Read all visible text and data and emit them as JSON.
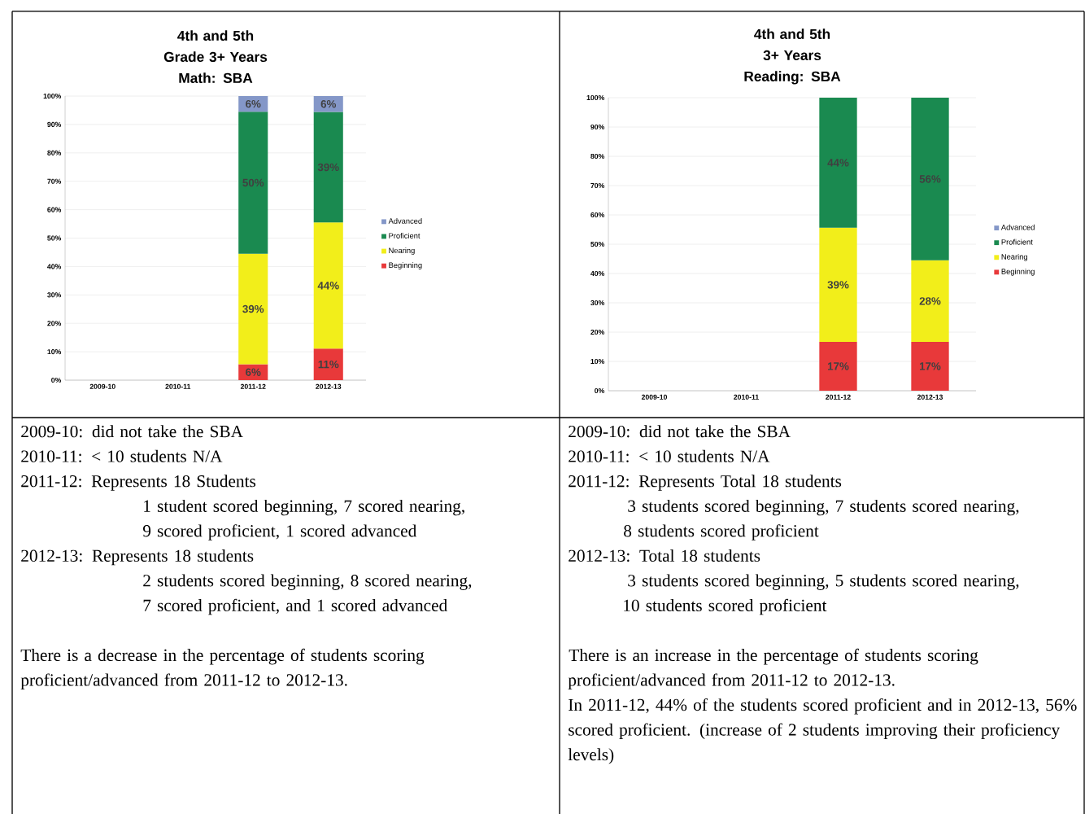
{
  "chart_data": [
    {
      "type": "bar",
      "stacked": true,
      "title": "4th and 5th Grade 3+ Years",
      "subtitle": "Math: SBA",
      "categories": [
        "2009-10",
        "2010-11",
        "2011-12",
        "2012-13"
      ],
      "series": [
        {
          "name": "Beginning",
          "color": "#e8393a",
          "values": [
            null,
            null,
            5.6,
            11.1
          ],
          "value_labels": [
            null,
            null,
            "6%",
            "11%"
          ]
        },
        {
          "name": "Nearing",
          "color": "#f2ee1a",
          "values": [
            null,
            null,
            38.9,
            44.4
          ],
          "value_labels": [
            null,
            null,
            "39%",
            "44%"
          ]
        },
        {
          "name": "Proficient",
          "color": "#1a8a50",
          "values": [
            null,
            null,
            50,
            38.9
          ],
          "value_labels": [
            null,
            null,
            "50%",
            "39%"
          ]
        },
        {
          "name": "Advanced",
          "color": "#8497c8",
          "values": [
            null,
            null,
            5.5,
            5.6
          ],
          "value_labels": [
            null,
            null,
            "6%",
            "6%"
          ]
        }
      ],
      "ylim": [
        0,
        100
      ],
      "yticks": [
        {
          "value": 0,
          "label": "0%"
        },
        {
          "value": 10,
          "label": "10%"
        },
        {
          "value": 20,
          "label": "20%"
        },
        {
          "value": 30,
          "label": "30%"
        },
        {
          "value": 40,
          "label": "40%"
        },
        {
          "value": 50,
          "label": "50%"
        },
        {
          "value": 60,
          "label": "60%"
        },
        {
          "value": 70,
          "label": "70%"
        },
        {
          "value": 80,
          "label": "80%"
        },
        {
          "value": 90,
          "label": "90%"
        },
        {
          "value": 100,
          "label": "100%"
        }
      ],
      "grid": "y",
      "legend": "right",
      "annotations": [
        "2009-10:  did not take the SBA",
        "2010-11:  < 10 students N/A",
        "2011-12:  Represents  18 Students",
        "1 student scored beginning, 7 scored nearing,",
        "9 scored proficient, 1 scored advanced",
        "2012-13:  Represents 18 students",
        "2 students scored beginning, 8 scored nearing,",
        "7 scored proficient, and 1 scored advanced",
        "There is a decrease in the percentage of students scoring proficient/advanced from 2011-12 to 2012-13."
      ]
    },
    {
      "type": "bar",
      "stacked": true,
      "title": "4th and 5th 3+ Years",
      "subtitle": "Reading: SBA",
      "categories": [
        "2009-10",
        "2010-11",
        "2011-12",
        "2012-13"
      ],
      "series": [
        {
          "name": "Beginning",
          "color": "#e8393a",
          "values": [
            null,
            null,
            16.7,
            16.7
          ],
          "value_labels": [
            null,
            null,
            "17%",
            "17%"
          ]
        },
        {
          "name": "Nearing",
          "color": "#f2ee1a",
          "values": [
            null,
            null,
            38.9,
            27.8
          ],
          "value_labels": [
            null,
            null,
            "39%",
            "28%"
          ]
        },
        {
          "name": "Proficient",
          "color": "#1a8a50",
          "values": [
            null,
            null,
            44.4,
            55.5
          ],
          "value_labels": [
            null,
            null,
            "44%",
            "56%"
          ]
        },
        {
          "name": "Advanced",
          "color": "#8497c8",
          "values": [
            null,
            null,
            null,
            null
          ]
        }
      ],
      "ylim": [
        0,
        100
      ],
      "yticks": [
        {
          "value": 0,
          "label": "0%"
        },
        {
          "value": 10,
          "label": "10%"
        },
        {
          "value": 20,
          "label": "20%"
        },
        {
          "value": 30,
          "label": "30%"
        },
        {
          "value": 40,
          "label": "40%"
        },
        {
          "value": 50,
          "label": "50%"
        },
        {
          "value": 60,
          "label": "60%"
        },
        {
          "value": 70,
          "label": "70%"
        },
        {
          "value": 80,
          "label": "80%"
        },
        {
          "value": 90,
          "label": "90%"
        },
        {
          "value": 100,
          "label": "100%"
        }
      ],
      "grid": "y",
      "legend": "right",
      "annotations": [
        "2009-10: did not take the SBA",
        "2010-11: < 10 students  N/A",
        "2011-12:  Represents Total 18 students",
        "3 students scored beginning, 7 students scored nearing,",
        "8 students scored proficient",
        "2012-13:  Total 18 students",
        "3 students scored beginning, 5 students scored nearing,",
        "10 students scored proficient",
        "There is an increase in the percentage of students scoring proficient/advanced from 2011-12 to 2012-13.",
        "In 2011-12, 44% of the students scored proficient and in 2012-13, 56% scored proficient. (increase of 2 students improving their proficiency levels)"
      ]
    }
  ]
}
